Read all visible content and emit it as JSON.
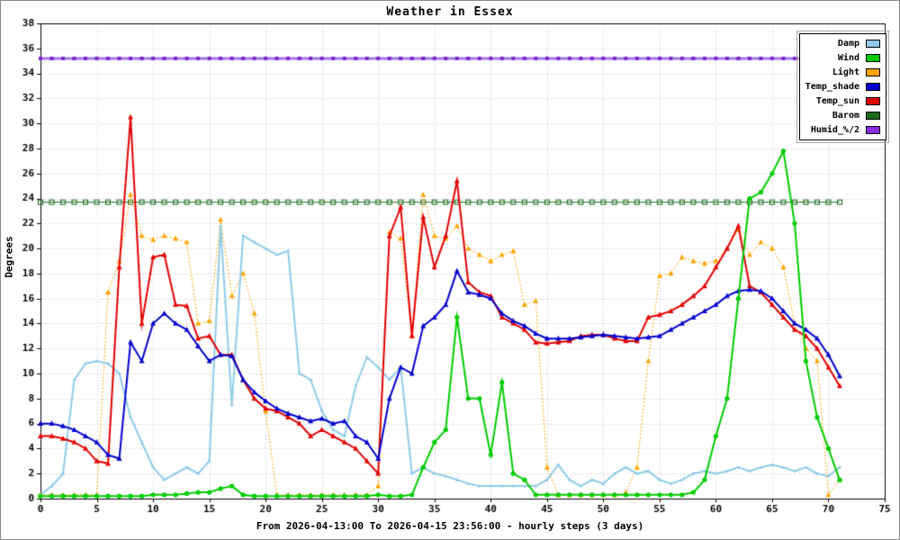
{
  "chart_data": {
    "type": "line",
    "title": "Weather in Essex",
    "xlabel": "From 2026-04-13:00 To 2026-04-15 23:56:00 - hourly steps (3 days)",
    "ylabel": "Degrees",
    "xlim": [
      0,
      75
    ],
    "ylim": [
      0,
      38
    ],
    "x_tick_step": 5,
    "y_tick_step": 2,
    "grid": true,
    "legend_position": "top-right",
    "points": 72,
    "series": [
      {
        "name": "Damp",
        "color": "#8FCBE8",
        "marker": "dot",
        "line_width": 2,
        "values": [
          0.3,
          1.0,
          2.0,
          9.5,
          10.8,
          11.0,
          10.8,
          10.0,
          6.5,
          4.5,
          2.5,
          1.5,
          2.0,
          2.5,
          2.0,
          3.0,
          21.8,
          7.5,
          21.0,
          20.5,
          20.0,
          19.5,
          19.8,
          10.0,
          9.5,
          7.0,
          5.5,
          5.0,
          9.0,
          11.3,
          10.5,
          9.5,
          10.5,
          2.0,
          2.5,
          2.0,
          1.8,
          1.5,
          1.2,
          1.0,
          1.0,
          1.0,
          1.0,
          1.0,
          1.0,
          1.5,
          2.7,
          1.5,
          1.0,
          1.5,
          1.2,
          2.0,
          2.5,
          2.0,
          2.2,
          1.5,
          1.2,
          1.5,
          2.0,
          2.2,
          2.0,
          2.2,
          2.5,
          2.2,
          2.5,
          2.7,
          2.5,
          2.2,
          2.5,
          2.0,
          1.8,
          2.5
        ]
      },
      {
        "name": "Wind",
        "color": "#00CC00",
        "marker": "circle",
        "line_width": 2,
        "values": [
          0.2,
          0.2,
          0.2,
          0.2,
          0.2,
          0.2,
          0.2,
          0.2,
          0.2,
          0.2,
          0.3,
          0.3,
          0.3,
          0.4,
          0.5,
          0.5,
          0.8,
          1.0,
          0.3,
          0.2,
          0.2,
          0.2,
          0.2,
          0.2,
          0.2,
          0.2,
          0.2,
          0.2,
          0.2,
          0.2,
          0.3,
          0.2,
          0.2,
          0.3,
          2.5,
          4.5,
          5.5,
          14.5,
          8.0,
          8.0,
          3.5,
          9.3,
          2.0,
          1.5,
          0.3,
          0.3,
          0.3,
          0.3,
          0.3,
          0.3,
          0.3,
          0.3,
          0.3,
          0.3,
          0.3,
          0.3,
          0.3,
          0.3,
          0.5,
          1.5,
          5.0,
          8.0,
          16.0,
          24.0,
          24.5,
          26.0,
          27.8,
          22.0,
          11.0,
          6.5,
          4.0,
          1.5
        ]
      },
      {
        "name": "Light",
        "color": "#FFA500",
        "marker": "triangle",
        "line_width": 1,
        "line_style": "dotted",
        "values": [
          0.3,
          0.3,
          0.3,
          0.3,
          0.3,
          0.3,
          16.5,
          19.0,
          24.3,
          21.0,
          20.7,
          21.0,
          20.8,
          20.5,
          14.0,
          14.2,
          22.3,
          16.2,
          18.0,
          14.8,
          7.0,
          0.3,
          0.3,
          0.3,
          0.3,
          0.3,
          0.3,
          0.3,
          0.3,
          0.3,
          1.0,
          21.3,
          20.8,
          13.0,
          24.3,
          21.0,
          20.8,
          21.8,
          20.0,
          19.5,
          19.0,
          19.5,
          19.8,
          15.5,
          15.8,
          2.5,
          0.3,
          0.3,
          0.3,
          0.3,
          0.3,
          0.3,
          0.5,
          2.5,
          11.0,
          17.8,
          18.0,
          19.3,
          19.0,
          18.8,
          19.0,
          20.0,
          21.5,
          19.5,
          20.5,
          20.0,
          18.5,
          14.0,
          12.0,
          11.0,
          0.3,
          1.5
        ]
      },
      {
        "name": "Temp_shade",
        "color": "#0000CD",
        "marker": "triangle",
        "line_width": 2,
        "values": [
          6.0,
          6.0,
          5.8,
          5.5,
          5.0,
          4.5,
          3.5,
          3.2,
          12.5,
          11.0,
          14.0,
          14.8,
          14.0,
          13.5,
          12.2,
          11.0,
          11.5,
          11.4,
          9.5,
          8.5,
          7.8,
          7.2,
          6.8,
          6.5,
          6.2,
          6.4,
          6.0,
          6.2,
          5.0,
          4.5,
          3.2,
          8.0,
          10.5,
          10.0,
          13.8,
          14.5,
          15.5,
          18.2,
          16.5,
          16.3,
          16.0,
          14.8,
          14.2,
          13.8,
          13.2,
          12.8,
          12.8,
          12.8,
          12.9,
          13.0,
          13.1,
          13.0,
          12.9,
          12.8,
          12.9,
          13.0,
          13.5,
          14.0,
          14.5,
          15.0,
          15.5,
          16.2,
          16.6,
          16.7,
          16.6,
          16.0,
          15.0,
          14.0,
          13.5,
          12.8,
          11.5,
          9.8
        ]
      },
      {
        "name": "Temp_sun",
        "color": "#E30000",
        "marker": "triangle",
        "line_width": 2,
        "values": [
          5.0,
          5.0,
          4.8,
          4.5,
          4.0,
          3.0,
          2.8,
          18.5,
          30.5,
          14.0,
          19.3,
          19.5,
          15.5,
          15.4,
          12.8,
          13.0,
          11.5,
          11.5,
          9.5,
          8.0,
          7.2,
          7.0,
          6.5,
          6.0,
          5.0,
          5.5,
          5.0,
          4.5,
          4.0,
          3.0,
          2.0,
          21.0,
          23.3,
          13.0,
          22.5,
          18.5,
          21.0,
          25.4,
          17.3,
          16.5,
          16.2,
          14.5,
          14.0,
          13.5,
          12.5,
          12.4,
          12.5,
          12.6,
          13.0,
          13.1,
          13.1,
          12.8,
          12.6,
          12.6,
          14.5,
          14.7,
          15.0,
          15.5,
          16.2,
          17.0,
          18.5,
          20.0,
          21.8,
          17.0,
          16.5,
          15.5,
          14.5,
          13.5,
          13.0,
          12.0,
          10.5,
          9.0
        ]
      },
      {
        "name": "Barom",
        "color": "#1A6B1A",
        "marker": "square-open",
        "line_width": 1,
        "flat_value": 23.7
      },
      {
        "name": "Humid_%/2",
        "color": "#A275E3",
        "marker": "square",
        "marker_color": "#7D26CD",
        "legend_color": "#8A2BE2",
        "line_width": 3,
        "flat_value": 35.2
      }
    ]
  }
}
